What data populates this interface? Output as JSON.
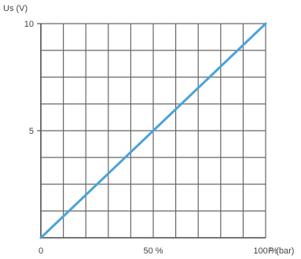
{
  "chart_data": {
    "type": "line",
    "ylabel": "Us (V)",
    "xlabel": "P (bar)",
    "xlim": [
      0,
      100
    ],
    "ylim": [
      0,
      10
    ],
    "x_ticks": [
      {
        "value": 0,
        "label": "0"
      },
      {
        "value": 50,
        "label": "50 %"
      },
      {
        "value": 100,
        "label": "100 %"
      }
    ],
    "y_ticks": [
      {
        "value": 5,
        "label": "5"
      },
      {
        "value": 10,
        "label": "10"
      }
    ],
    "grid": true,
    "grid_columns": 10,
    "grid_rows": 8,
    "series": [
      {
        "color": "#4aa3d9",
        "x": [
          0,
          100
        ],
        "y": [
          0,
          10
        ]
      }
    ]
  }
}
